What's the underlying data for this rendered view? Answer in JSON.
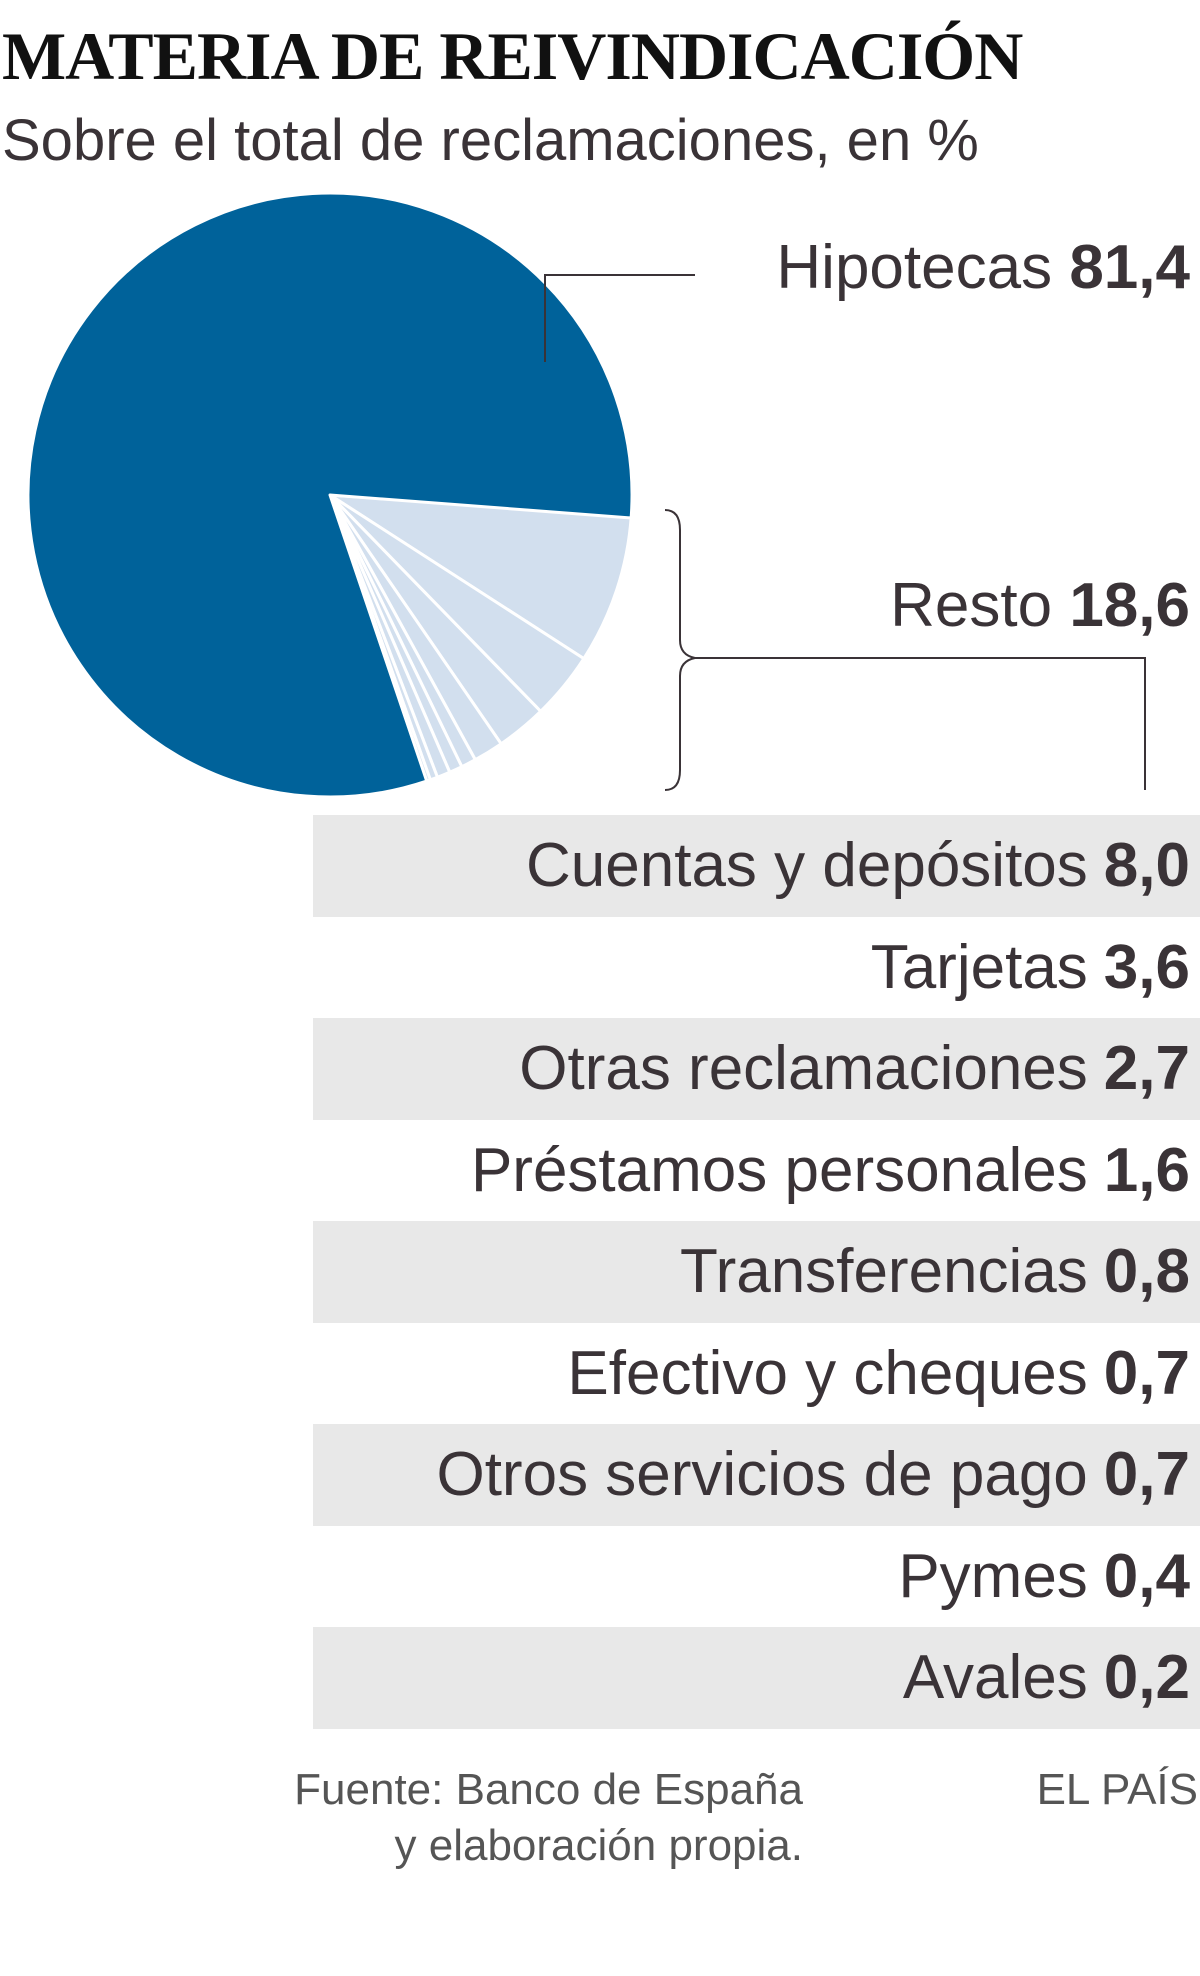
{
  "chart_data": {
    "type": "pie",
    "title": "MATERIA DE REIVINDICACIÓN",
    "subtitle": "Sobre el total de reclamaciones, en %",
    "main_slice": {
      "label": "Hipotecas",
      "value": "81,4",
      "numeric": 81.4,
      "color": "#00629a"
    },
    "rest_group": {
      "label": "Resto",
      "value": "18,6",
      "numeric": 18.6,
      "color": "#d2dfee"
    },
    "rest_items": [
      {
        "label": "Cuentas y depósitos",
        "value": "8,0",
        "numeric": 8.0
      },
      {
        "label": "Tarjetas",
        "value": "3,6",
        "numeric": 3.6
      },
      {
        "label": "Otras reclamaciones",
        "value": "2,7",
        "numeric": 2.7
      },
      {
        "label": "Préstamos personales",
        "value": "1,6",
        "numeric": 1.6
      },
      {
        "label": "Transferencias",
        "value": "0,8",
        "numeric": 0.8
      },
      {
        "label": "Efectivo y cheques",
        "value": "0,7",
        "numeric": 0.7
      },
      {
        "label": "Otros servicios de pago",
        "value": "0,7",
        "numeric": 0.7
      },
      {
        "label": "Pymes",
        "value": "0,4",
        "numeric": 0.4
      },
      {
        "label": "Avales",
        "value": "0,2",
        "numeric": 0.2
      }
    ],
    "unit": "%"
  },
  "footer": {
    "source_line1": "Fuente: Banco de España",
    "source_line2": "y elaboración propia.",
    "credit": "EL PAÍS"
  }
}
